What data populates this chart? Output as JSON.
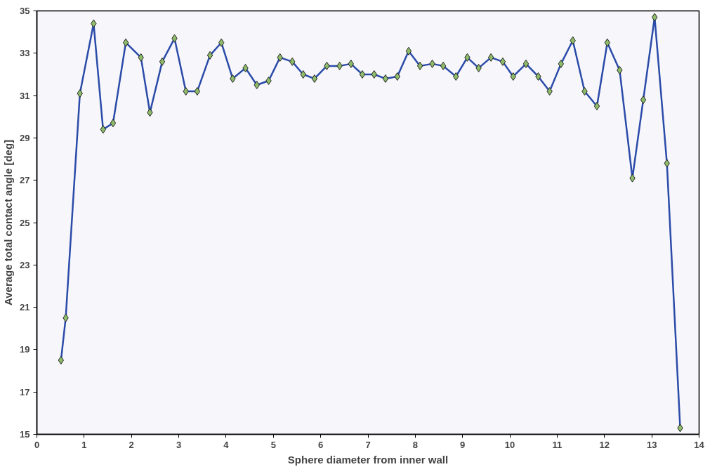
{
  "chart_data": {
    "type": "line",
    "xlabel": "Sphere diameter from inner wall",
    "ylabel": "Average total contact angle [deg]",
    "xlim": [
      0,
      14
    ],
    "ylim": [
      15,
      35
    ],
    "xticks": [
      0,
      1,
      2,
      3,
      4,
      5,
      6,
      7,
      8,
      9,
      10,
      11,
      12,
      13,
      14
    ],
    "yticks": [
      15,
      17,
      19,
      21,
      23,
      25,
      27,
      29,
      31,
      33,
      35
    ],
    "grid": false,
    "marker": "diamond",
    "line_style": "solid",
    "series": [
      {
        "color": "#2b4ba8",
        "colors": [
          "#8fbc6a",
          "#8fbc6a",
          "#8fbc6a",
          "#8fbc6a",
          "#8fbc6a",
          "#8fbc6a",
          "#8fbc6a",
          "#8fbc6a",
          "#8fbc6a",
          "#8fbc6a",
          "#8fbc6a",
          "#8fbc6a",
          "#8fbc6a",
          "#8fbc6a",
          "#8fbc6a",
          "#8fbc6a",
          "#8fbc6a",
          "#8fbc6a",
          "#8fbc6a",
          "#8fbc6a",
          "#8fbc6a",
          "#8fbc6a",
          "#8fbc6a",
          "#8fbc6a",
          "#8fbc6a",
          "#8fbc6a",
          "#8fbc6a",
          "#8fbc6a",
          "#8fbc6a",
          "#8fbc6a",
          "#8fbc6a",
          "#8fbc6a",
          "#8fbc6a",
          "#8fbc6a",
          "#8fbc6a",
          "#8fbc6a",
          "#8fbc6a",
          "#8fbc6a",
          "#8fbc6a",
          "#8fbc6a",
          "#8fbc6a",
          "#8fbc6a",
          "#8fbc6a",
          "#8fbc6a",
          "#8fbc6a",
          "#8fbc6a",
          "#8fbc6a",
          "#8fbc6a",
          "#8fbc6a",
          "#8fbc6a",
          "#8fbc6a",
          "#8fbc6a",
          "#8fbc6a",
          "#8fbc6a"
        ],
        "x": [
          0.51,
          0.61,
          0.91,
          1.2,
          1.4,
          1.61,
          1.88,
          2.2,
          2.39,
          2.65,
          2.91,
          3.15,
          3.39,
          3.66,
          3.9,
          4.14,
          4.41,
          4.65,
          4.9,
          5.14,
          5.4,
          5.63,
          5.87,
          6.13,
          6.4,
          6.64,
          6.88,
          7.13,
          7.37,
          7.62,
          7.86,
          8.1,
          8.36,
          8.59,
          8.86,
          9.1,
          9.34,
          9.6,
          9.85,
          10.07,
          10.34,
          10.6,
          10.84,
          11.08,
          11.33,
          11.58,
          11.84,
          12.06,
          12.32,
          12.59,
          12.82,
          13.06,
          13.32,
          13.6
        ],
        "values": [
          18.5,
          20.5,
          31.1,
          34.4,
          29.4,
          29.7,
          33.5,
          32.8,
          30.2,
          32.6,
          33.7,
          31.2,
          31.2,
          32.9,
          33.5,
          31.8,
          32.3,
          31.5,
          31.7,
          32.8,
          32.6,
          32.0,
          31.8,
          32.4,
          32.4,
          32.5,
          32.0,
          32.0,
          31.8,
          31.9,
          33.1,
          32.4,
          32.5,
          32.4,
          31.9,
          32.8,
          32.3,
          32.8,
          32.6,
          31.9,
          32.5,
          31.9,
          31.2,
          32.5,
          33.6,
          31.2,
          30.5,
          33.5,
          32.2,
          27.1,
          30.8,
          34.7,
          27.8,
          15.3
        ]
      }
    ]
  }
}
